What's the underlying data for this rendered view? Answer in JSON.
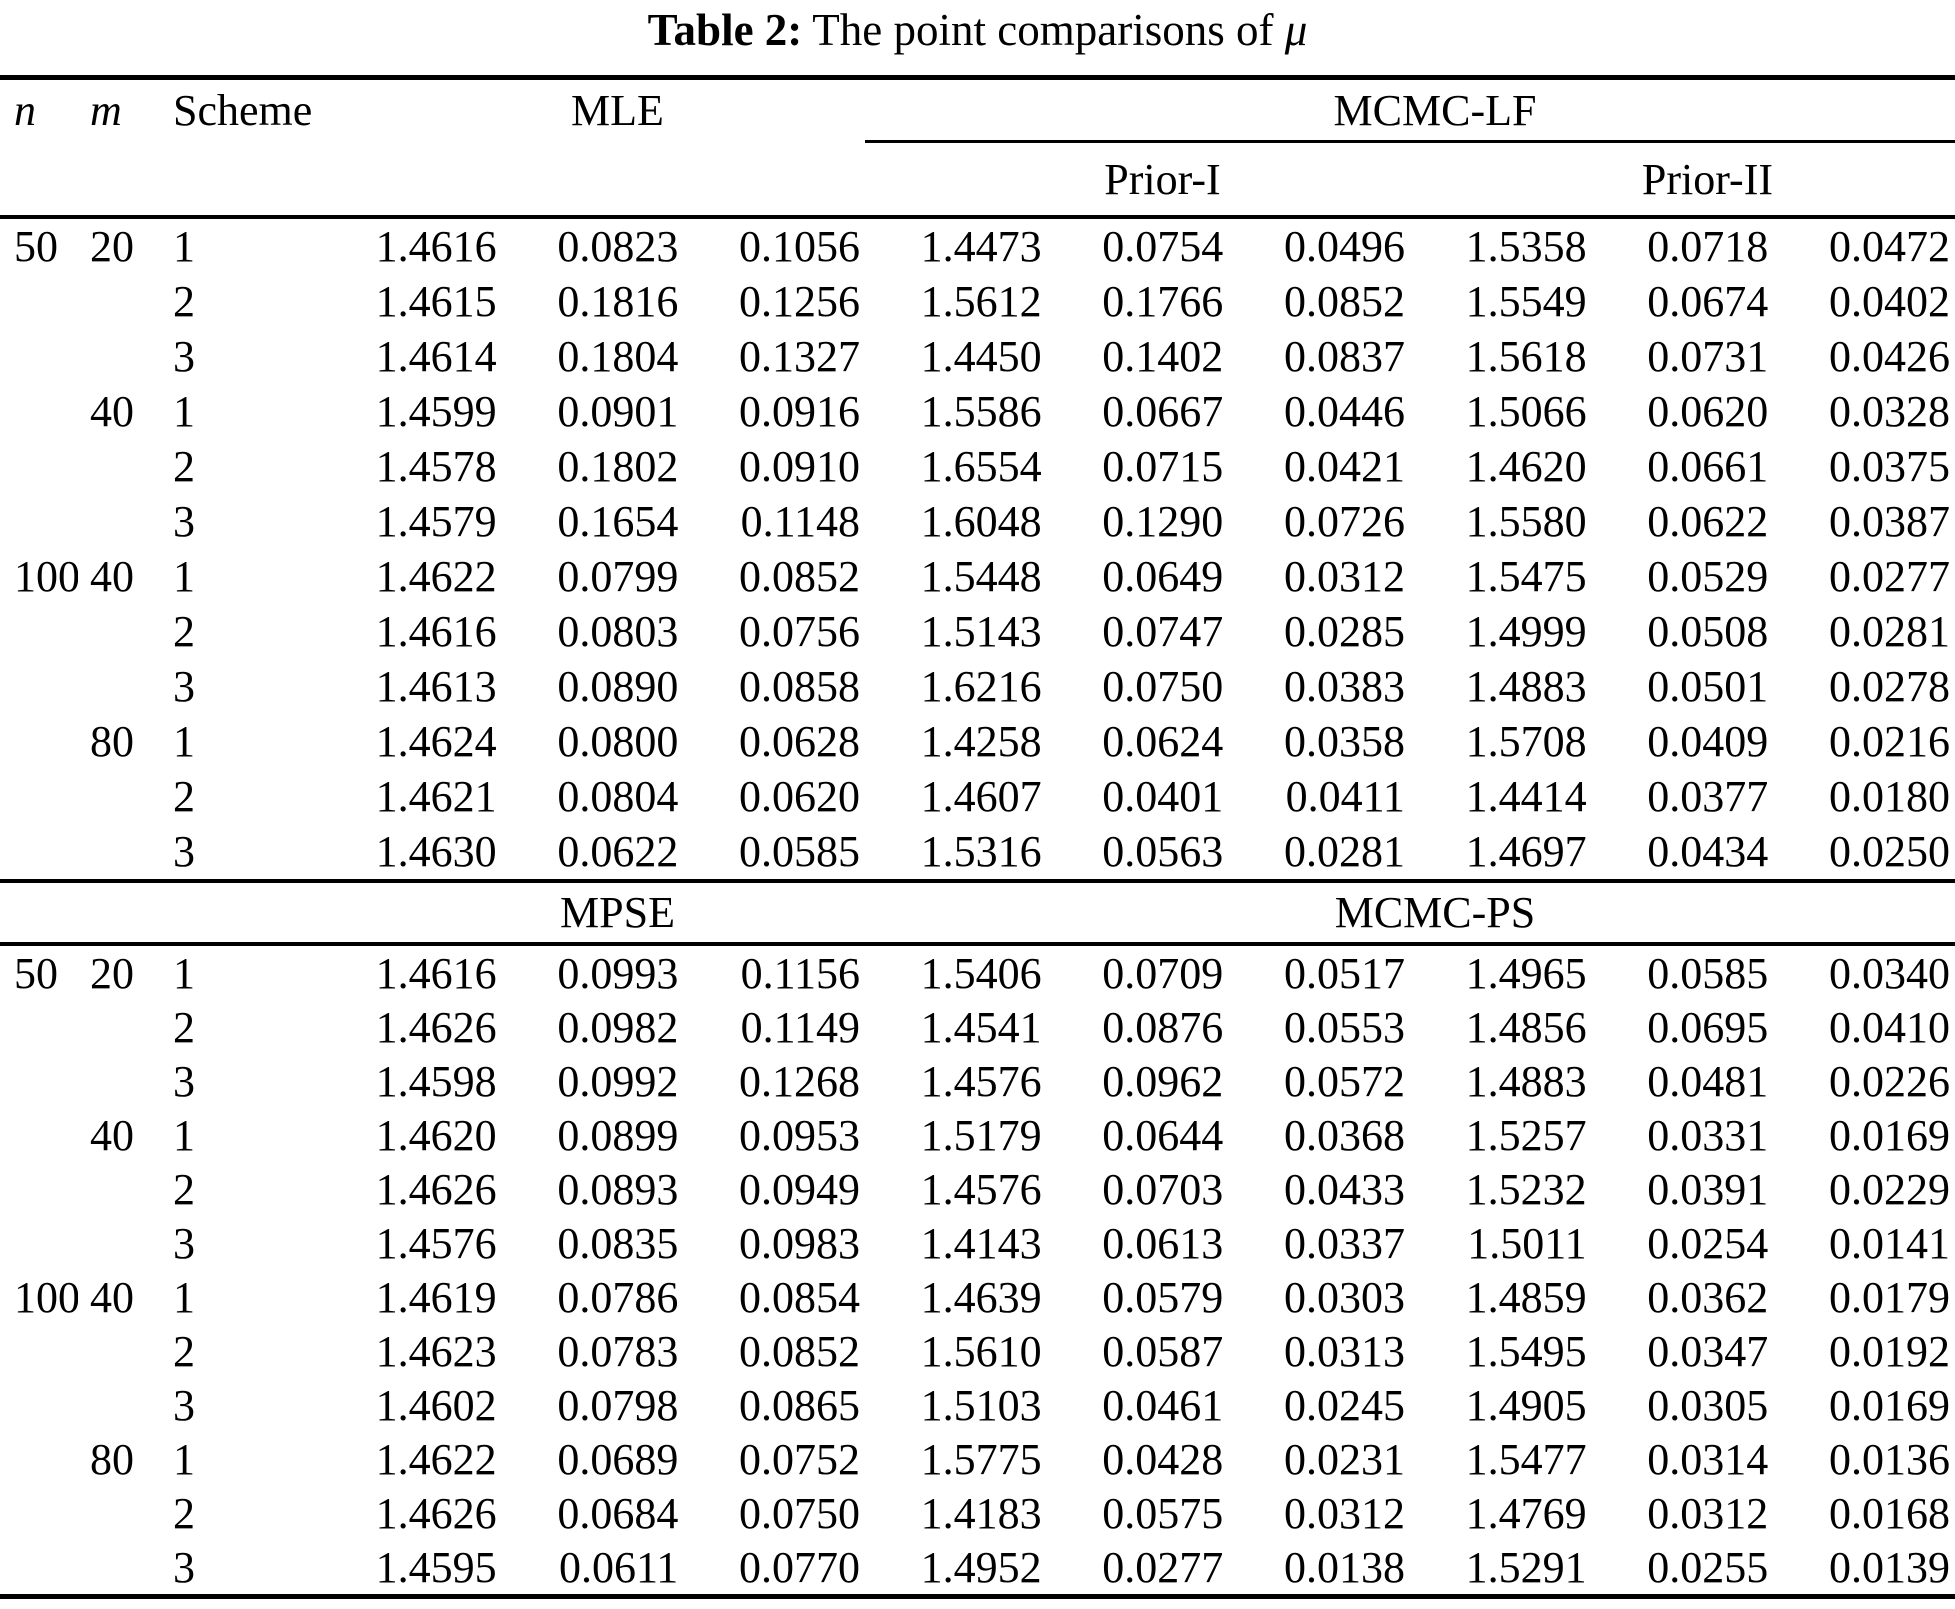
{
  "title": {
    "label": "Table 2:",
    "text": "The point comparisons of",
    "symbol": "μ"
  },
  "table": {
    "columns": {
      "n": "n",
      "m": "m",
      "scheme": "Scheme"
    },
    "sections": [
      {
        "group1": "MLE",
        "group2": "MCMC-LF",
        "subgroups": [
          "Prior-I",
          "Prior-II"
        ],
        "rows": [
          {
            "n": "50",
            "m": "20",
            "scheme": "1",
            "values": [
              "1.4616",
              "0.0823",
              "0.1056",
              "1.4473",
              "0.0754",
              "0.0496",
              "1.5358",
              "0.0718",
              "0.0472"
            ]
          },
          {
            "n": "",
            "m": "",
            "scheme": "2",
            "values": [
              "1.4615",
              "0.1816",
              "0.1256",
              "1.5612",
              "0.1766",
              "0.0852",
              "1.5549",
              "0.0674",
              "0.0402"
            ]
          },
          {
            "n": "",
            "m": "",
            "scheme": "3",
            "values": [
              "1.4614",
              "0.1804",
              "0.1327",
              "1.4450",
              "0.1402",
              "0.0837",
              "1.5618",
              "0.0731",
              "0.0426"
            ]
          },
          {
            "n": "",
            "m": "40",
            "scheme": "1",
            "values": [
              "1.4599",
              "0.0901",
              "0.0916",
              "1.5586",
              "0.0667",
              "0.0446",
              "1.5066",
              "0.0620",
              "0.0328"
            ]
          },
          {
            "n": "",
            "m": "",
            "scheme": "2",
            "values": [
              "1.4578",
              "0.1802",
              "0.0910",
              "1.6554",
              "0.0715",
              "0.0421",
              "1.4620",
              "0.0661",
              "0.0375"
            ]
          },
          {
            "n": "",
            "m": "",
            "scheme": "3",
            "values": [
              "1.4579",
              "0.1654",
              "0.1148",
              "1.6048",
              "0.1290",
              "0.0726",
              "1.5580",
              "0.0622",
              "0.0387"
            ]
          },
          {
            "n": "100",
            "m": "40",
            "scheme": "1",
            "values": [
              "1.4622",
              "0.0799",
              "0.0852",
              "1.5448",
              "0.0649",
              "0.0312",
              "1.5475",
              "0.0529",
              "0.0277"
            ]
          },
          {
            "n": "",
            "m": "",
            "scheme": "2",
            "values": [
              "1.4616",
              "0.0803",
              "0.0756",
              "1.5143",
              "0.0747",
              "0.0285",
              "1.4999",
              "0.0508",
              "0.0281"
            ]
          },
          {
            "n": "",
            "m": "",
            "scheme": "3",
            "values": [
              "1.4613",
              "0.0890",
              "0.0858",
              "1.6216",
              "0.0750",
              "0.0383",
              "1.4883",
              "0.0501",
              "0.0278"
            ]
          },
          {
            "n": "",
            "m": "80",
            "scheme": "1",
            "values": [
              "1.4624",
              "0.0800",
              "0.0628",
              "1.4258",
              "0.0624",
              "0.0358",
              "1.5708",
              "0.0409",
              "0.0216"
            ]
          },
          {
            "n": "",
            "m": "",
            "scheme": "2",
            "values": [
              "1.4621",
              "0.0804",
              "0.0620",
              "1.4607",
              "0.0401",
              "0.0411",
              "1.4414",
              "0.0377",
              "0.0180"
            ]
          },
          {
            "n": "",
            "m": "",
            "scheme": "3",
            "values": [
              "1.4630",
              "0.0622",
              "0.0585",
              "1.5316",
              "0.0563",
              "0.0281",
              "1.4697",
              "0.0434",
              "0.0250"
            ]
          }
        ]
      },
      {
        "group1": "MPSE",
        "group2": "MCMC-PS",
        "rows": [
          {
            "n": "50",
            "m": "20",
            "scheme": "1",
            "values": [
              "1.4616",
              "0.0993",
              "0.1156",
              "1.5406",
              "0.0709",
              "0.0517",
              "1.4965",
              "0.0585",
              "0.0340"
            ]
          },
          {
            "n": "",
            "m": "",
            "scheme": "2",
            "values": [
              "1.4626",
              "0.0982",
              "0.1149",
              "1.4541",
              "0.0876",
              "0.0553",
              "1.4856",
              "0.0695",
              "0.0410"
            ]
          },
          {
            "n": "",
            "m": "",
            "scheme": "3",
            "values": [
              "1.4598",
              "0.0992",
              "0.1268",
              "1.4576",
              "0.0962",
              "0.0572",
              "1.4883",
              "0.0481",
              "0.0226"
            ]
          },
          {
            "n": "",
            "m": "40",
            "scheme": "1",
            "values": [
              "1.4620",
              "0.0899",
              "0.0953",
              "1.5179",
              "0.0644",
              "0.0368",
              "1.5257",
              "0.0331",
              "0.0169"
            ]
          },
          {
            "n": "",
            "m": "",
            "scheme": "2",
            "values": [
              "1.4626",
              "0.0893",
              "0.0949",
              "1.4576",
              "0.0703",
              "0.0433",
              "1.5232",
              "0.0391",
              "0.0229"
            ]
          },
          {
            "n": "",
            "m": "",
            "scheme": "3",
            "values": [
              "1.4576",
              "0.0835",
              "0.0983",
              "1.4143",
              "0.0613",
              "0.0337",
              "1.5011",
              "0.0254",
              "0.0141"
            ]
          },
          {
            "n": "100",
            "m": "40",
            "scheme": "1",
            "values": [
              "1.4619",
              "0.0786",
              "0.0854",
              "1.4639",
              "0.0579",
              "0.0303",
              "1.4859",
              "0.0362",
              "0.0179"
            ]
          },
          {
            "n": "",
            "m": "",
            "scheme": "2",
            "values": [
              "1.4623",
              "0.0783",
              "0.0852",
              "1.5610",
              "0.0587",
              "0.0313",
              "1.5495",
              "0.0347",
              "0.0192"
            ]
          },
          {
            "n": "",
            "m": "",
            "scheme": "3",
            "values": [
              "1.4602",
              "0.0798",
              "0.0865",
              "1.5103",
              "0.0461",
              "0.0245",
              "1.4905",
              "0.0305",
              "0.0169"
            ]
          },
          {
            "n": "",
            "m": "80",
            "scheme": "1",
            "values": [
              "1.4622",
              "0.0689",
              "0.0752",
              "1.5775",
              "0.0428",
              "0.0231",
              "1.5477",
              "0.0314",
              "0.0136"
            ]
          },
          {
            "n": "",
            "m": "",
            "scheme": "2",
            "values": [
              "1.4626",
              "0.0684",
              "0.0750",
              "1.4183",
              "0.0575",
              "0.0312",
              "1.4769",
              "0.0312",
              "0.0168"
            ]
          },
          {
            "n": "",
            "m": "",
            "scheme": "3",
            "values": [
              "1.4595",
              "0.0611",
              "0.0770",
              "1.4952",
              "0.0277",
              "0.0138",
              "1.5291",
              "0.0255",
              "0.0139"
            ]
          }
        ]
      }
    ]
  }
}
